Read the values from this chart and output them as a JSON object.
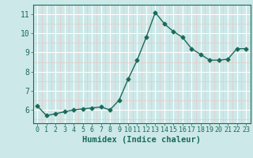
{
  "x": [
    0,
    1,
    2,
    3,
    4,
    5,
    6,
    7,
    8,
    9,
    10,
    11,
    12,
    13,
    14,
    15,
    16,
    17,
    18,
    19,
    20,
    21,
    22,
    23
  ],
  "y": [
    6.2,
    5.7,
    5.8,
    5.9,
    6.0,
    6.05,
    6.1,
    6.15,
    6.0,
    6.5,
    7.6,
    8.6,
    9.8,
    11.1,
    10.5,
    10.1,
    9.8,
    9.2,
    8.9,
    8.6,
    8.6,
    8.65,
    9.2,
    9.2
  ],
  "line_color": "#1a6b5a",
  "marker": "D",
  "marker_size": 2.5,
  "bg_color": "#cde8e8",
  "major_grid_color": "#ffffff",
  "minor_grid_color": "#e8c8c8",
  "xlabel": "Humidex (Indice chaleur)",
  "xlabel_fontsize": 7.5,
  "tick_color": "#1a6b5a",
  "tick_label_color": "#1a6b5a",
  "ylim": [
    5.3,
    11.5
  ],
  "xlim": [
    -0.5,
    23.5
  ],
  "yticks": [
    6,
    7,
    8,
    9,
    10,
    11
  ],
  "xticks": [
    0,
    1,
    2,
    3,
    4,
    5,
    6,
    7,
    8,
    9,
    10,
    11,
    12,
    13,
    14,
    15,
    16,
    17,
    18,
    19,
    20,
    21,
    22,
    23
  ]
}
